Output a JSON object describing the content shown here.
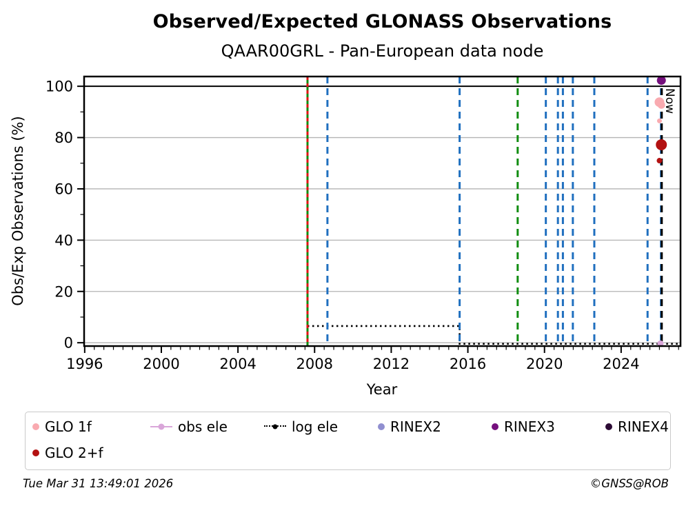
{
  "header": {
    "title": "Observed/Expected GLONASS Observations",
    "subtitle": "QAAR00GRL - Pan-European data node"
  },
  "chart_data": {
    "type": "scatter",
    "title": "Observed/Expected GLONASS Observations",
    "subtitle": "QAAR00GRL - Pan-European data node",
    "xlabel": "Year",
    "ylabel": "Obs/Exp Observations (%)",
    "xlim": [
      1995.97,
      2027.1
    ],
    "ylim": [
      -1.3,
      103.8
    ],
    "xticks": [
      1996,
      2000,
      2004,
      2008,
      2012,
      2016,
      2020,
      2024
    ],
    "yticks": [
      0,
      20,
      40,
      60,
      80,
      100
    ],
    "x_minor_step": 0.5,
    "y_minor_step": 10,
    "grid": "horizontal",
    "grid_color": "#b3b3b3",
    "reference_line": {
      "y": 100,
      "color": "#000000"
    },
    "now_label": "Now",
    "event_lines": [
      {
        "x": 2007.63,
        "color": "#0f8c0f",
        "style": "solid",
        "name": "antenna-change-green"
      },
      {
        "x": 2007.63,
        "color": "#e01212",
        "style": "dashed-fine",
        "name": "receiver-change-red"
      },
      {
        "x": 2008.67,
        "color": "#1f6fbf",
        "style": "dashed"
      },
      {
        "x": 2015.57,
        "color": "#1f6fbf",
        "style": "dashed"
      },
      {
        "x": 2018.6,
        "color": "#0f8c0f",
        "style": "dashed"
      },
      {
        "x": 2020.07,
        "color": "#1f6fbf",
        "style": "dashed"
      },
      {
        "x": 2020.7,
        "color": "#1f6fbf",
        "style": "dashed"
      },
      {
        "x": 2020.96,
        "color": "#1f6fbf",
        "style": "dashed"
      },
      {
        "x": 2021.48,
        "color": "#1f6fbf",
        "style": "dashed"
      },
      {
        "x": 2022.6,
        "color": "#1f6fbf",
        "style": "dashed"
      },
      {
        "x": 2025.38,
        "color": "#1f6fbf",
        "style": "dashed"
      },
      {
        "x": 2026.08,
        "color": "#1f6fbf",
        "style": "dashed"
      },
      {
        "x": 2026.12,
        "color": "#000000",
        "style": "dashed",
        "label": "Now"
      }
    ],
    "log_ele_line": {
      "name": "log ele",
      "color": "#000000",
      "style": "dotted",
      "points": [
        [
          2007.63,
          6.5
        ],
        [
          2015.57,
          6.5
        ],
        [
          2015.57,
          -0.4
        ],
        [
          2027.08,
          -0.4
        ]
      ]
    },
    "series": [
      {
        "name": "GLO 1f",
        "color": "#f9aab0",
        "points": [
          {
            "x": 2026.0,
            "y": 93.8,
            "r": 7
          },
          {
            "x": 2026.1,
            "y": 92.7,
            "r": 5.5
          },
          {
            "x": 2026.0,
            "y": 86.5,
            "r": 3.5
          }
        ]
      },
      {
        "name": "GLO 2+f",
        "color": "#b31111",
        "points": [
          {
            "x": 2026.1,
            "y": 77.2,
            "r": 8
          },
          {
            "x": 2026.0,
            "y": 71.0,
            "r": 4
          }
        ]
      },
      {
        "name": "obs ele",
        "color": "#d9a6d9",
        "points": [
          {
            "x": 2026.05,
            "y": -0.3,
            "r": 4.5
          }
        ]
      },
      {
        "name": "log ele",
        "color": "#000000",
        "points": []
      },
      {
        "name": "RINEX2",
        "color": "#908fd0",
        "points": []
      },
      {
        "name": "RINEX3",
        "color": "#75107d",
        "points": [
          {
            "x": 2026.1,
            "y": 102.3,
            "r": 6.5
          }
        ]
      },
      {
        "name": "RINEX4",
        "color": "#2c0b35",
        "points": []
      }
    ]
  },
  "legend": {
    "items": [
      {
        "label": "GLO 1f",
        "color": "#f9aab0",
        "marker": "dot",
        "row": 1
      },
      {
        "label": "obs ele",
        "color": "#d9a6d9",
        "marker": "line-dot",
        "row": 1
      },
      {
        "label": "log ele",
        "color": "#000000",
        "marker": "dotted-dot",
        "row": 1
      },
      {
        "label": "RINEX2",
        "color": "#908fd0",
        "marker": "dot",
        "row": 1
      },
      {
        "label": "RINEX3",
        "color": "#75107d",
        "marker": "dot",
        "row": 1
      },
      {
        "label": "RINEX4",
        "color": "#2c0b35",
        "marker": "dot",
        "row": 1
      },
      {
        "label": "GLO 2+f",
        "color": "#b31111",
        "marker": "dot",
        "row": 2
      }
    ]
  },
  "footer": {
    "timestamp": "Tue Mar 31 13:49:01 2026",
    "copyright": "©GNSS@ROB"
  }
}
